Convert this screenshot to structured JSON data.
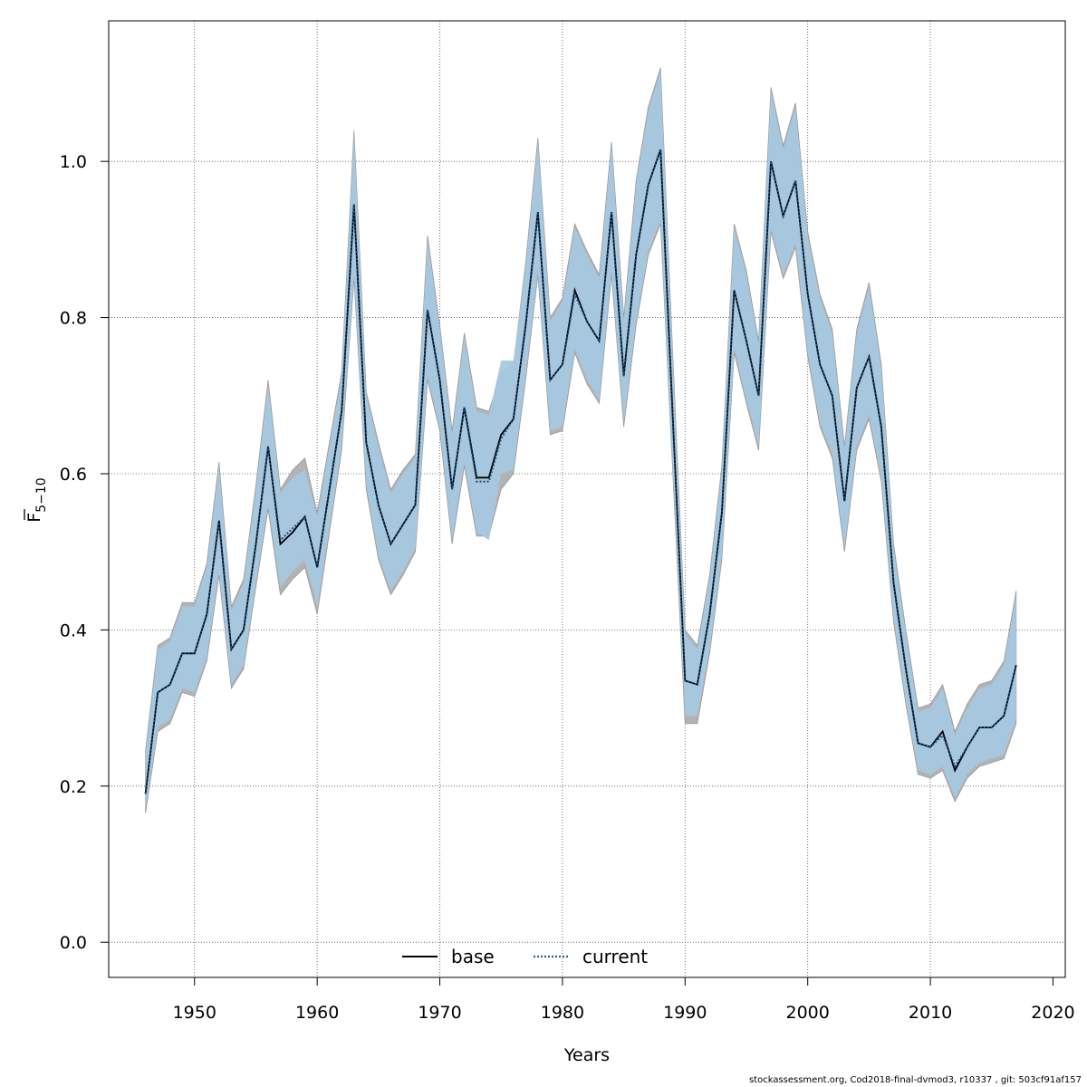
{
  "chart_data": {
    "type": "area",
    "xlabel": "Years",
    "ylabel_main": "F",
    "ylabel_sub": "5−10",
    "xlim": [
      1943,
      2021
    ],
    "ylim": [
      -0.045,
      1.18
    ],
    "xticks": [
      1950,
      1960,
      1970,
      1980,
      1990,
      2000,
      2010,
      2020
    ],
    "yticks": [
      0.0,
      0.2,
      0.4,
      0.6,
      0.8,
      1.0
    ],
    "grid": true,
    "legend": {
      "placement": "bottom-center",
      "entries": [
        {
          "name": "base",
          "style": "solid",
          "color": "#000000"
        },
        {
          "name": "current",
          "style": "dotted",
          "color": "#2c5f8a"
        }
      ]
    },
    "colors": {
      "base_band": "#b3b3b3",
      "current_band": "#a6c8e0",
      "base_line": "#000000",
      "current_line": "#1f4e79"
    },
    "x": [
      1946,
      1947,
      1948,
      1949,
      1950,
      1951,
      1952,
      1953,
      1954,
      1955,
      1956,
      1957,
      1958,
      1959,
      1960,
      1961,
      1962,
      1963,
      1964,
      1965,
      1966,
      1967,
      1968,
      1969,
      1970,
      1971,
      1972,
      1973,
      1974,
      1975,
      1976,
      1977,
      1978,
      1979,
      1980,
      1981,
      1982,
      1983,
      1984,
      1985,
      1986,
      1987,
      1988,
      1989,
      1990,
      1991,
      1992,
      1993,
      1994,
      1995,
      1996,
      1997,
      1998,
      1999,
      2000,
      2001,
      2002,
      2003,
      2004,
      2005,
      2006,
      2007,
      2008,
      2009,
      2010,
      2011,
      2012,
      2013,
      2014,
      2015,
      2016,
      2017
    ],
    "series": [
      {
        "name": "base",
        "values": [
          0.19,
          0.32,
          0.33,
          0.37,
          0.37,
          0.42,
          0.54,
          0.375,
          0.4,
          0.51,
          0.635,
          0.51,
          0.525,
          0.545,
          0.48,
          0.58,
          0.68,
          0.945,
          0.64,
          0.56,
          0.51,
          0.535,
          0.56,
          0.81,
          0.72,
          0.58,
          0.685,
          0.595,
          0.595,
          0.65,
          0.67,
          0.79,
          0.935,
          0.72,
          0.74,
          0.835,
          0.795,
          0.77,
          0.935,
          0.725,
          0.88,
          0.97,
          1.015,
          0.67,
          0.335,
          0.33,
          0.42,
          0.55,
          0.835,
          0.77,
          0.7,
          1.0,
          0.93,
          0.975,
          0.83,
          0.74,
          0.7,
          0.565,
          0.71,
          0.75,
          0.66,
          0.46,
          0.35,
          0.255,
          0.25,
          0.27,
          0.22,
          0.25,
          0.275,
          0.275,
          0.29,
          0.355
        ],
        "lower": [
          0.165,
          0.27,
          0.28,
          0.32,
          0.315,
          0.36,
          0.47,
          0.325,
          0.35,
          0.455,
          0.555,
          0.445,
          0.465,
          0.48,
          0.42,
          0.525,
          0.63,
          0.85,
          0.58,
          0.49,
          0.445,
          0.47,
          0.5,
          0.72,
          0.655,
          0.51,
          0.61,
          0.52,
          0.52,
          0.58,
          0.6,
          0.72,
          0.855,
          0.65,
          0.655,
          0.755,
          0.715,
          0.69,
          0.855,
          0.66,
          0.79,
          0.88,
          0.92,
          0.6,
          0.28,
          0.28,
          0.37,
          0.49,
          0.755,
          0.69,
          0.63,
          0.91,
          0.85,
          0.89,
          0.75,
          0.66,
          0.62,
          0.5,
          0.63,
          0.67,
          0.59,
          0.41,
          0.305,
          0.215,
          0.21,
          0.22,
          0.18,
          0.21,
          0.225,
          0.23,
          0.235,
          0.28
        ],
        "upper": [
          0.245,
          0.38,
          0.39,
          0.435,
          0.435,
          0.485,
          0.615,
          0.43,
          0.465,
          0.585,
          0.72,
          0.58,
          0.605,
          0.62,
          0.55,
          0.64,
          0.73,
          1.04,
          0.705,
          0.64,
          0.58,
          0.605,
          0.625,
          0.905,
          0.79,
          0.655,
          0.78,
          0.685,
          0.68,
          0.73,
          0.74,
          0.87,
          1.03,
          0.8,
          0.825,
          0.92,
          0.885,
          0.855,
          1.025,
          0.8,
          0.975,
          1.07,
          1.12,
          0.75,
          0.4,
          0.38,
          0.47,
          0.61,
          0.92,
          0.86,
          0.77,
          1.095,
          1.02,
          1.075,
          0.91,
          0.83,
          0.785,
          0.635,
          0.785,
          0.845,
          0.74,
          0.51,
          0.4,
          0.3,
          0.305,
          0.33,
          0.27,
          0.305,
          0.33,
          0.335,
          0.36,
          0.45
        ]
      },
      {
        "name": "current",
        "values": [
          0.19,
          0.32,
          0.33,
          0.37,
          0.37,
          0.42,
          0.54,
          0.375,
          0.4,
          0.51,
          0.635,
          0.515,
          0.53,
          0.545,
          0.48,
          0.58,
          0.68,
          0.945,
          0.64,
          0.56,
          0.51,
          0.535,
          0.56,
          0.81,
          0.72,
          0.58,
          0.685,
          0.59,
          0.59,
          0.645,
          0.67,
          0.79,
          0.935,
          0.72,
          0.74,
          0.83,
          0.795,
          0.77,
          0.935,
          0.725,
          0.88,
          0.97,
          1.015,
          0.67,
          0.335,
          0.33,
          0.42,
          0.55,
          0.835,
          0.77,
          0.7,
          1.0,
          0.93,
          0.975,
          0.83,
          0.74,
          0.7,
          0.565,
          0.71,
          0.75,
          0.66,
          0.46,
          0.35,
          0.255,
          0.25,
          0.265,
          0.225,
          0.25,
          0.275,
          0.275,
          0.29,
          0.355
        ],
        "lower": [
          0.17,
          0.275,
          0.285,
          0.325,
          0.32,
          0.365,
          0.475,
          0.33,
          0.355,
          0.46,
          0.56,
          0.455,
          0.475,
          0.49,
          0.43,
          0.53,
          0.635,
          0.855,
          0.585,
          0.495,
          0.45,
          0.475,
          0.505,
          0.725,
          0.66,
          0.515,
          0.615,
          0.525,
          0.515,
          0.6,
          0.605,
          0.725,
          0.86,
          0.655,
          0.66,
          0.76,
          0.72,
          0.695,
          0.86,
          0.665,
          0.795,
          0.885,
          0.925,
          0.605,
          0.29,
          0.29,
          0.375,
          0.495,
          0.76,
          0.695,
          0.635,
          0.915,
          0.855,
          0.895,
          0.755,
          0.665,
          0.625,
          0.505,
          0.635,
          0.675,
          0.595,
          0.415,
          0.31,
          0.22,
          0.215,
          0.225,
          0.185,
          0.215,
          0.23,
          0.235,
          0.24,
          0.285
        ],
        "upper": [
          0.24,
          0.375,
          0.385,
          0.43,
          0.43,
          0.48,
          0.61,
          0.425,
          0.46,
          0.58,
          0.715,
          0.575,
          0.595,
          0.605,
          0.545,
          0.635,
          0.725,
          1.035,
          0.7,
          0.635,
          0.575,
          0.6,
          0.62,
          0.9,
          0.785,
          0.65,
          0.775,
          0.68,
          0.675,
          0.745,
          0.745,
          0.865,
          1.025,
          0.795,
          0.82,
          0.915,
          0.88,
          0.85,
          1.02,
          0.795,
          0.97,
          1.065,
          1.115,
          0.745,
          0.395,
          0.375,
          0.465,
          0.605,
          0.915,
          0.855,
          0.765,
          1.09,
          1.015,
          1.07,
          0.905,
          0.825,
          0.78,
          0.63,
          0.78,
          0.84,
          0.735,
          0.505,
          0.395,
          0.295,
          0.3,
          0.325,
          0.265,
          0.3,
          0.325,
          0.33,
          0.355,
          0.445
        ]
      }
    ]
  },
  "footer": "stockassessment.org, Cod2018-final-dvmod3, r10337 , git: 503cf91af157"
}
